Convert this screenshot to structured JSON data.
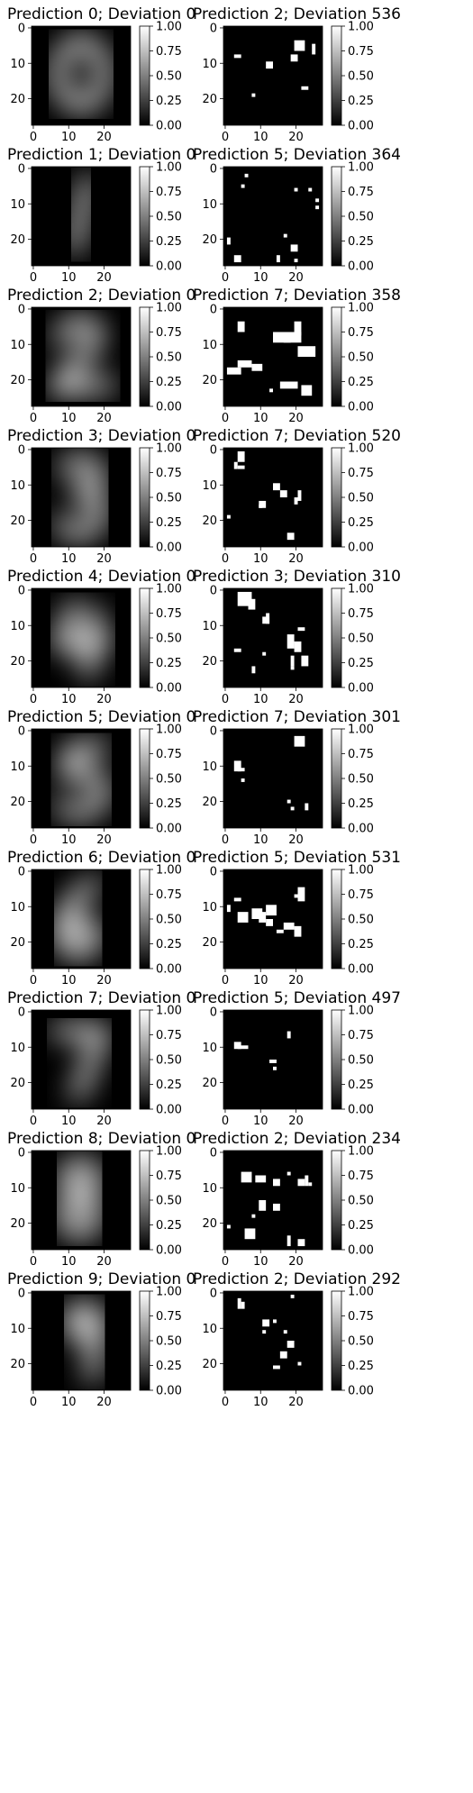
{
  "chart_data": {
    "type": "heatmap",
    "layout": "10 rows x 2 columns of image panels, each with a grayscale colorbar",
    "image_axis": {
      "xticks": [
        0,
        10,
        20
      ],
      "yticks": [
        0,
        10,
        20
      ],
      "xlim": [
        -0.5,
        27.5
      ],
      "ylim": [
        27.5,
        -0.5
      ]
    },
    "colorbar": {
      "range": [
        0.0,
        1.0
      ],
      "ticks": [
        "0.00",
        "0.25",
        "0.50",
        "0.75",
        "1.00"
      ],
      "colormap": "gray"
    },
    "colors": {
      "background": "#ffffff",
      "panel": "#000000",
      "ink": "#ffffff"
    },
    "rows": [
      {
        "left": {
          "title": "Prediction 0; Deviation 0",
          "content": "blurred digit 0"
        },
        "right": {
          "title": "Prediction 2; Deviation 536",
          "content": "sparse binary pixel mask",
          "blobs": [
            [
              4,
              20,
              3,
              3
            ],
            [
              5,
              25,
              3,
              1
            ],
            [
              8,
              19,
              2,
              2
            ],
            [
              8,
              3,
              1,
              2
            ],
            [
              10,
              12,
              2,
              2
            ],
            [
              17,
              22,
              1,
              2
            ],
            [
              19,
              8,
              1,
              1
            ]
          ]
        }
      },
      {
        "left": {
          "title": "Prediction 1; Deviation 0",
          "content": "blurred digit 1"
        },
        "right": {
          "title": "Prediction 5; Deviation 364",
          "content": "sparse binary pixel mask",
          "blobs": [
            [
              2,
              6,
              1,
              1
            ],
            [
              5,
              5,
              1,
              1
            ],
            [
              6,
              20,
              1,
              1
            ],
            [
              6,
              24,
              1,
              1
            ],
            [
              9,
              26,
              1,
              1
            ],
            [
              11,
              26,
              1,
              1
            ],
            [
              20,
              1,
              2,
              1
            ],
            [
              19,
              17,
              1,
              1
            ],
            [
              22,
              19,
              2,
              2
            ],
            [
              25,
              3,
              2,
              2
            ],
            [
              25,
              15,
              2,
              1
            ],
            [
              26,
              20,
              1,
              1
            ]
          ]
        }
      },
      {
        "left": {
          "title": "Prediction 2; Deviation 0",
          "content": "blurred digit 2"
        },
        "right": {
          "title": "Prediction 7; Deviation 358",
          "content": "sparse binary pixel mask",
          "blobs": [
            [
              4,
              4,
              3,
              2
            ],
            [
              4,
              20,
              4,
              2
            ],
            [
              7,
              14,
              3,
              5
            ],
            [
              7,
              17,
              3,
              5
            ],
            [
              11,
              21,
              3,
              5
            ],
            [
              15,
              4,
              2,
              4
            ],
            [
              16,
              8,
              2,
              3
            ],
            [
              17,
              1,
              2,
              4
            ],
            [
              21,
              16,
              2,
              5
            ],
            [
              22,
              22,
              3,
              3
            ],
            [
              23,
              13,
              1,
              1
            ]
          ]
        }
      },
      {
        "left": {
          "title": "Prediction 3; Deviation 0",
          "content": "blurred digit 3"
        },
        "right": {
          "title": "Prediction 7; Deviation 520",
          "content": "sparse binary pixel mask",
          "blobs": [
            [
              1,
              4,
              3,
              2
            ],
            [
              4,
              3,
              2,
              1
            ],
            [
              5,
              4,
              1,
              2
            ],
            [
              10,
              14,
              2,
              2
            ],
            [
              12,
              16,
              2,
              2
            ],
            [
              14,
              20,
              2,
              1
            ],
            [
              15,
              10,
              2,
              2
            ],
            [
              12,
              21,
              3,
              1
            ],
            [
              16,
              10,
              1,
              1
            ],
            [
              19,
              1,
              1,
              1
            ],
            [
              24,
              18,
              2,
              2
            ]
          ]
        }
      },
      {
        "left": {
          "title": "Prediction 4; Deviation 0",
          "content": "blurred digit 4"
        },
        "right": {
          "title": "Prediction 3; Deviation 310",
          "content": "sparse binary pixel mask",
          "blobs": [
            [
              1,
              4,
              4,
              4
            ],
            [
              3,
              7,
              3,
              2
            ],
            [
              7,
              12,
              3,
              1
            ],
            [
              8,
              11,
              2,
              2
            ],
            [
              11,
              21,
              1,
              2
            ],
            [
              13,
              18,
              4,
              2
            ],
            [
              15,
              20,
              3,
              2
            ],
            [
              17,
              3,
              1,
              2
            ],
            [
              18,
              11,
              1,
              1
            ],
            [
              19,
              19,
              3,
              1
            ],
            [
              19,
              22,
              3,
              2
            ],
            [
              22,
              8,
              2,
              1
            ],
            [
              22,
              19,
              1,
              1
            ]
          ]
        }
      },
      {
        "left": {
          "title": "Prediction 5; Deviation 0",
          "content": "blurred digit 5"
        },
        "right": {
          "title": "Prediction 7; Deviation 301",
          "content": "sparse binary pixel mask",
          "blobs": [
            [
              2,
              20,
              3,
              3
            ],
            [
              9,
              3,
              3,
              2
            ],
            [
              11,
              4,
              1,
              2
            ],
            [
              14,
              5,
              1,
              1
            ],
            [
              20,
              18,
              1,
              1
            ],
            [
              22,
              19,
              1,
              1
            ],
            [
              21,
              23,
              2,
              1
            ]
          ]
        }
      },
      {
        "left": {
          "title": "Prediction 6; Deviation 0",
          "content": "blurred digit 6"
        },
        "right": {
          "title": "Prediction 5; Deviation 531",
          "content": "sparse binary pixel mask",
          "blobs": [
            [
              5,
              21,
              4,
              2
            ],
            [
              7,
              20,
              1,
              1
            ],
            [
              8,
              3,
              1,
              2
            ],
            [
              10,
              1,
              2,
              1
            ],
            [
              11,
              8,
              3,
              3
            ],
            [
              12,
              4,
              3,
              3
            ],
            [
              10,
              12,
              3,
              3
            ],
            [
              12,
              10,
              3,
              2
            ],
            [
              14,
              12,
              2,
              2
            ],
            [
              15,
              17,
              2,
              3
            ],
            [
              16,
              20,
              3,
              2
            ],
            [
              17,
              15,
              1,
              2
            ]
          ]
        }
      },
      {
        "left": {
          "title": "Prediction 7; Deviation 0",
          "content": "blurred digit 7"
        },
        "right": {
          "title": "Prediction 5; Deviation 497",
          "content": "sparse binary pixel mask",
          "blobs": [
            [
              6,
              18,
              2,
              1
            ],
            [
              9,
              3,
              2,
              2
            ],
            [
              10,
              4,
              1,
              3
            ],
            [
              14,
              13,
              1,
              2
            ],
            [
              16,
              14,
              1,
              1
            ]
          ]
        }
      },
      {
        "left": {
          "title": "Prediction 8; Deviation 0",
          "content": "blurred digit 8"
        },
        "right": {
          "title": "Prediction 2; Deviation 234",
          "content": "sparse binary pixel mask",
          "blobs": [
            [
              6,
              5,
              3,
              3
            ],
            [
              7,
              9,
              2,
              3
            ],
            [
              8,
              14,
              2,
              2
            ],
            [
              6,
              18,
              1,
              1
            ],
            [
              8,
              21,
              2,
              2
            ],
            [
              7,
              23,
              3,
              1
            ],
            [
              9,
              24,
              1,
              1
            ],
            [
              14,
              10,
              3,
              2
            ],
            [
              15,
              14,
              2,
              2
            ],
            [
              18,
              8,
              1,
              1
            ],
            [
              21,
              1,
              1,
              1
            ],
            [
              22,
              6,
              3,
              3
            ],
            [
              24,
              18,
              3,
              1
            ],
            [
              25,
              21,
              2,
              2
            ]
          ]
        }
      },
      {
        "left": {
          "title": "Prediction 9; Deviation 0",
          "content": "blurred digit 9"
        },
        "right": {
          "title": "Prediction 2; Deviation 292",
          "content": "sparse binary pixel mask",
          "blobs": [
            [
              2,
              4,
              3,
              1
            ],
            [
              3,
              5,
              2,
              1
            ],
            [
              1,
              19,
              1,
              1
            ],
            [
              8,
              11,
              2,
              2
            ],
            [
              8,
              14,
              1,
              1
            ],
            [
              11,
              11,
              1,
              1
            ],
            [
              11,
              17,
              1,
              1
            ],
            [
              14,
              18,
              2,
              2
            ],
            [
              17,
              16,
              2,
              2
            ],
            [
              21,
              14,
              1,
              2
            ],
            [
              20,
              21,
              1,
              1
            ]
          ]
        }
      }
    ]
  }
}
